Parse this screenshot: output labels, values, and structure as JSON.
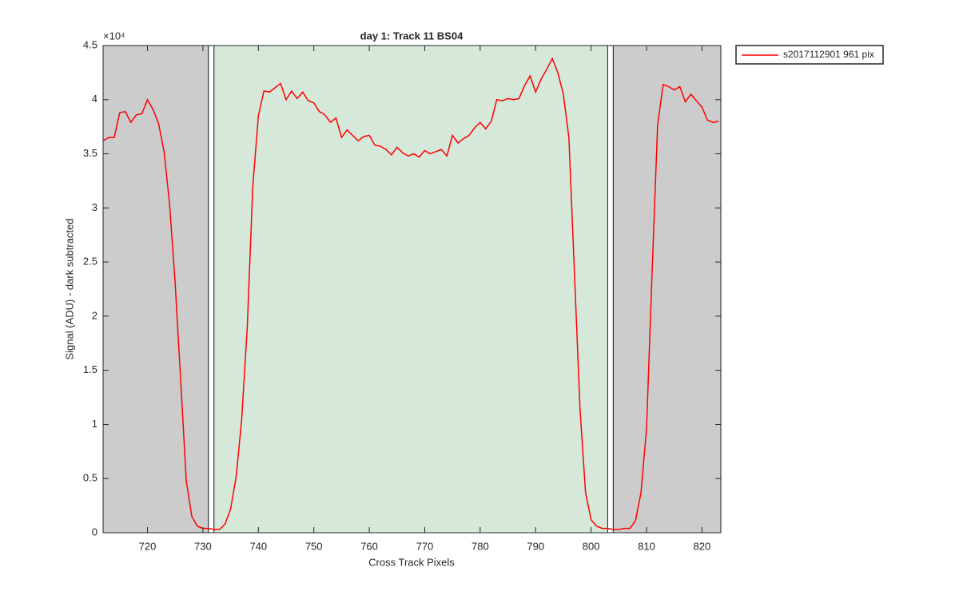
{
  "chart_data": {
    "type": "line",
    "title": "day 1: Track 11  BS04",
    "x_label": "Cross Track Pixels",
    "y_label": "Signal (ADU) - dark subtracted",
    "y_multiplier": "×10⁴",
    "x": [
      712,
      713,
      714,
      715,
      716,
      717,
      718,
      719,
      720,
      721,
      722,
      723,
      724,
      725,
      726,
      727,
      728,
      729,
      730,
      731,
      732,
      733,
      734,
      735,
      736,
      737,
      738,
      739,
      740,
      741,
      742,
      743,
      744,
      745,
      746,
      747,
      748,
      749,
      750,
      751,
      752,
      753,
      754,
      755,
      756,
      757,
      758,
      759,
      760,
      761,
      762,
      763,
      764,
      765,
      766,
      767,
      768,
      769,
      770,
      771,
      772,
      773,
      774,
      775,
      776,
      777,
      778,
      779,
      780,
      781,
      782,
      783,
      784,
      785,
      786,
      787,
      788,
      789,
      790,
      791,
      792,
      793,
      794,
      795,
      796,
      797,
      798,
      799,
      800,
      801,
      802,
      803,
      804,
      805,
      806,
      807,
      808,
      809,
      810,
      811,
      812,
      813,
      814,
      815,
      816,
      817,
      818,
      819,
      820,
      821,
      822,
      823
    ],
    "series": [
      {
        "name": "s2017112901 961 pix",
        "color": "#ff0000",
        "values": [
          3.62,
          3.65,
          3.65,
          3.88,
          3.89,
          3.79,
          3.86,
          3.87,
          4.0,
          3.91,
          3.78,
          3.52,
          3.03,
          2.3,
          1.4,
          0.48,
          0.15,
          0.06,
          0.04,
          0.04,
          0.03,
          0.03,
          0.08,
          0.22,
          0.52,
          1.05,
          1.9,
          3.2,
          3.85,
          4.08,
          4.07,
          4.11,
          4.15,
          4.0,
          4.08,
          4.01,
          4.07,
          3.99,
          3.97,
          3.89,
          3.86,
          3.79,
          3.83,
          3.65,
          3.72,
          3.67,
          3.62,
          3.66,
          3.67,
          3.58,
          3.57,
          3.54,
          3.49,
          3.56,
          3.51,
          3.48,
          3.5,
          3.47,
          3.53,
          3.5,
          3.52,
          3.54,
          3.48,
          3.67,
          3.6,
          3.64,
          3.67,
          3.74,
          3.79,
          3.73,
          3.8,
          4.0,
          3.99,
          4.01,
          4.0,
          4.01,
          4.13,
          4.22,
          4.07,
          4.19,
          4.28,
          4.38,
          4.25,
          4.05,
          3.65,
          2.4,
          1.15,
          0.37,
          0.12,
          0.06,
          0.04,
          0.04,
          0.03,
          0.03,
          0.04,
          0.04,
          0.11,
          0.37,
          0.96,
          2.4,
          3.77,
          4.14,
          4.12,
          4.09,
          4.12,
          3.98,
          4.05,
          3.99,
          3.93,
          3.81,
          3.79,
          3.8
        ]
      }
    ],
    "regions": [
      {
        "x0": 712,
        "x1": 731,
        "color": "#cccccc"
      },
      {
        "x0": 731,
        "x1": 732,
        "color": "#ffffff"
      },
      {
        "x0": 732,
        "x1": 803,
        "color": "#d5e8d9"
      },
      {
        "x0": 803,
        "x1": 804,
        "color": "#ffffff"
      },
      {
        "x0": 804,
        "x1": 823.4,
        "color": "#cccccc"
      }
    ],
    "xlim": [
      712,
      823.4
    ],
    "xticks": [
      720,
      730,
      740,
      750,
      760,
      770,
      780,
      790,
      800,
      810,
      820
    ],
    "ylim": [
      0,
      4.5
    ],
    "yticks": [
      0,
      0.5,
      1,
      1.5,
      2,
      2.5,
      3,
      3.5,
      4,
      4.5
    ],
    "grid": false,
    "legend": "outside-top-right"
  }
}
